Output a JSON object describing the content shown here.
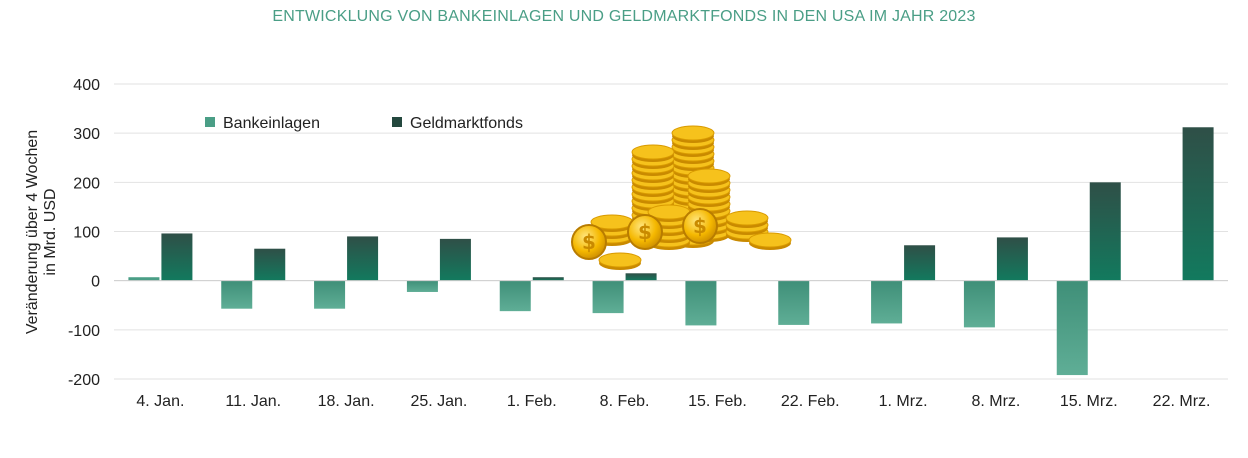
{
  "chart_data": {
    "type": "bar",
    "title": "ENTWICKLUNG VON BANKEINLAGEN UND GELDMARKTFONDS IN DEN USA IM JAHR 2023",
    "ylabel_lines": [
      "Veränderung über 4 Wochen",
      "in Mrd. USD"
    ],
    "categories": [
      "4. Jan.",
      "11. Jan.",
      "18. Jan.",
      "25. Jan.",
      "1. Feb.",
      "8. Feb.",
      "15. Feb.",
      "22. Feb.",
      "1. Mrz.",
      "8. Mrz.",
      "15. Mrz.",
      "22. Mrz."
    ],
    "series": [
      {
        "name": "Bankeinlagen",
        "color": "#4a9e86",
        "values": [
          7,
          -57,
          -57,
          -23,
          -62,
          -66,
          -91,
          -90,
          -87,
          -95,
          -192,
          0
        ]
      },
      {
        "name": "Geldmarktfonds",
        "color": "#1d6b55",
        "values": [
          96,
          65,
          90,
          85,
          7,
          15,
          0,
          0,
          72,
          88,
          200,
          312
        ]
      }
    ],
    "ylim": [
      -200,
      400
    ],
    "yticks": [
      -200,
      -100,
      0,
      100,
      200,
      300,
      400
    ],
    "grid": true,
    "legend_position": "top-left",
    "decoration": "gold-coins-icon"
  }
}
